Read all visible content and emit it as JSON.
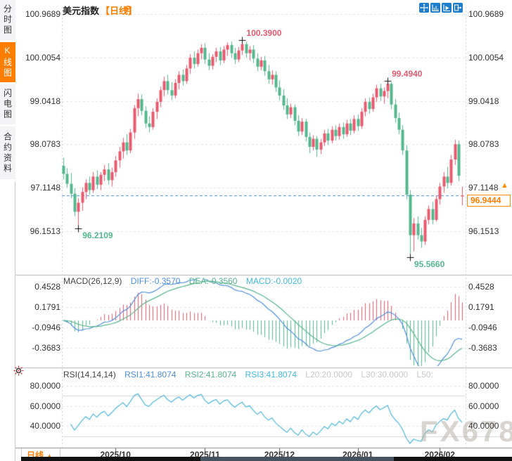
{
  "sidebar": {
    "items": [
      {
        "label": "分时图",
        "active": false
      },
      {
        "label": "K线图",
        "active": true
      },
      {
        "label": "闪电图",
        "active": false
      },
      {
        "label": "合约资料",
        "active": false
      }
    ]
  },
  "header": {
    "symbol": "美元指数",
    "period_tag": "【日线】",
    "add_icon": "⊕"
  },
  "toolbar": {
    "buttons": [
      "pan",
      "fit-y-axis",
      "scale-y-axis",
      "exit-chart"
    ]
  },
  "price_box": {
    "value": "96.9444"
  },
  "arrow_up": "▲",
  "footer": {
    "period": "日线",
    "arrow": "▲"
  },
  "watermark": "FX678",
  "colors": {
    "up": "#e85a6e",
    "down": "#54b78e",
    "accent": "#ff7d00",
    "diff_blue": "#4f8fdd",
    "dea_green": "#57b58c",
    "macd_cyan": "#3fbbdc",
    "rsi_line": "#4fb6da",
    "dashed_price_line": "#3f8fe0",
    "grid": "#e5e5e8",
    "level_gray": "#d6d6d6",
    "icon_blue": "#1f7ec9",
    "marker": "#111111"
  },
  "chart_data": {
    "type": "candlestick",
    "title": "美元指数 日线",
    "price_axis_labels": [
      "100.9689",
      "100.0054",
      "99.0418",
      "98.0783",
      "97.1148",
      "96.1513"
    ],
    "x_labels": [
      "2025/10",
      "2025/11",
      "2025/12",
      "2026/01",
      "2026/02"
    ],
    "x_label_indices": [
      14,
      38,
      58,
      79,
      101
    ],
    "current_price": 96.9444,
    "current_price_neighbor_label": "97.1148",
    "annotations": [
      {
        "index": 4,
        "value": 96.2109,
        "label": "96.2109",
        "kind": "low"
      },
      {
        "index": 48,
        "value": 100.39,
        "label": "100.3900",
        "kind": "high"
      },
      {
        "index": 87,
        "value": 99.494,
        "label": "99.4940",
        "kind": "high"
      },
      {
        "index": 93,
        "value": 95.566,
        "label": "95.5660",
        "kind": "low"
      }
    ],
    "candles_ohlc": [
      [
        97.6,
        97.78,
        97.3,
        97.42
      ],
      [
        97.42,
        97.55,
        97.12,
        97.2
      ],
      [
        97.2,
        97.44,
        96.88,
        96.98
      ],
      [
        96.98,
        97.1,
        96.48,
        96.58
      ],
      [
        96.58,
        96.88,
        96.2109,
        96.78
      ],
      [
        96.78,
        97.12,
        96.6,
        97.02
      ],
      [
        97.02,
        97.3,
        96.86,
        97.22
      ],
      [
        97.22,
        97.36,
        96.96,
        97.06
      ],
      [
        97.06,
        97.46,
        97.0,
        97.36
      ],
      [
        97.36,
        97.5,
        97.08,
        97.18
      ],
      [
        97.18,
        97.46,
        97.06,
        97.4
      ],
      [
        97.4,
        97.62,
        97.26,
        97.52
      ],
      [
        97.52,
        97.66,
        97.18,
        97.28
      ],
      [
        97.28,
        97.56,
        97.14,
        97.46
      ],
      [
        97.46,
        97.82,
        97.36,
        97.72
      ],
      [
        97.72,
        98.02,
        97.56,
        97.92
      ],
      [
        97.92,
        98.22,
        97.76,
        98.12
      ],
      [
        98.12,
        98.3,
        97.84,
        97.94
      ],
      [
        97.94,
        98.42,
        97.88,
        98.34
      ],
      [
        98.34,
        98.95,
        98.2,
        98.88
      ],
      [
        98.88,
        99.2,
        98.7,
        99.08
      ],
      [
        99.08,
        99.18,
        98.72,
        98.82
      ],
      [
        98.82,
        98.92,
        98.44,
        98.54
      ],
      [
        98.54,
        98.7,
        98.34,
        98.46
      ],
      [
        98.46,
        98.88,
        98.4,
        98.8
      ],
      [
        98.8,
        99.1,
        98.64,
        99.02
      ],
      [
        99.02,
        99.36,
        98.9,
        99.28
      ],
      [
        99.28,
        99.58,
        99.14,
        99.48
      ],
      [
        99.48,
        99.62,
        99.18,
        99.28
      ],
      [
        99.28,
        99.46,
        99.06,
        99.16
      ],
      [
        99.16,
        99.52,
        99.1,
        99.44
      ],
      [
        99.44,
        99.7,
        99.3,
        99.62
      ],
      [
        99.62,
        99.74,
        99.38,
        99.48
      ],
      [
        99.48,
        99.84,
        99.42,
        99.76
      ],
      [
        99.76,
        100.08,
        99.64,
        100.0
      ],
      [
        100.0,
        100.14,
        99.76,
        99.86
      ],
      [
        99.86,
        100.18,
        99.8,
        100.1
      ],
      [
        100.1,
        100.3,
        99.96,
        100.22
      ],
      [
        100.22,
        100.32,
        99.86,
        99.96
      ],
      [
        99.96,
        100.1,
        99.72,
        99.82
      ],
      [
        99.82,
        100.08,
        99.74,
        100.02
      ],
      [
        100.02,
        100.22,
        99.9,
        100.14
      ],
      [
        100.14,
        100.24,
        99.84,
        99.94
      ],
      [
        99.94,
        100.26,
        99.88,
        100.18
      ],
      [
        100.18,
        100.34,
        100.04,
        100.28
      ],
      [
        100.28,
        100.36,
        100.0,
        100.1
      ],
      [
        100.1,
        100.22,
        99.86,
        99.96
      ],
      [
        99.96,
        100.24,
        99.9,
        100.16
      ],
      [
        100.16,
        100.39,
        100.06,
        100.3
      ],
      [
        100.3,
        100.36,
        100.0,
        100.1
      ],
      [
        100.1,
        100.26,
        99.94,
        100.18
      ],
      [
        100.18,
        100.28,
        99.88,
        99.98
      ],
      [
        99.98,
        100.1,
        99.7,
        99.8
      ],
      [
        99.8,
        100.02,
        99.72,
        99.94
      ],
      [
        99.94,
        100.04,
        99.6,
        99.7
      ],
      [
        99.7,
        99.84,
        99.42,
        99.52
      ],
      [
        99.52,
        99.72,
        99.4,
        99.62
      ],
      [
        99.62,
        99.7,
        99.24,
        99.34
      ],
      [
        99.34,
        99.5,
        99.06,
        99.16
      ],
      [
        99.16,
        99.3,
        98.84,
        98.94
      ],
      [
        98.94,
        99.1,
        98.64,
        98.74
      ],
      [
        98.74,
        98.98,
        98.66,
        98.9
      ],
      [
        98.9,
        98.96,
        98.5,
        98.6
      ],
      [
        98.6,
        98.72,
        98.26,
        98.36
      ],
      [
        98.36,
        98.66,
        98.28,
        98.58
      ],
      [
        98.58,
        98.64,
        98.14,
        98.24
      ],
      [
        98.24,
        98.34,
        97.88,
        98.02
      ],
      [
        98.02,
        98.28,
        97.94,
        98.2
      ],
      [
        98.2,
        98.26,
        97.8,
        97.96
      ],
      [
        97.96,
        98.2,
        97.86,
        98.12
      ],
      [
        98.12,
        98.4,
        98.04,
        98.32
      ],
      [
        98.32,
        98.42,
        98.06,
        98.16
      ],
      [
        98.16,
        98.48,
        98.1,
        98.4
      ],
      [
        98.4,
        98.5,
        98.16,
        98.26
      ],
      [
        98.26,
        98.54,
        98.18,
        98.46
      ],
      [
        98.46,
        98.56,
        98.2,
        98.3
      ],
      [
        98.3,
        98.62,
        98.24,
        98.54
      ],
      [
        98.54,
        98.64,
        98.28,
        98.38
      ],
      [
        98.38,
        98.72,
        98.32,
        98.64
      ],
      [
        98.64,
        98.74,
        98.38,
        98.48
      ],
      [
        98.48,
        98.88,
        98.42,
        98.8
      ],
      [
        98.8,
        99.1,
        98.7,
        99.02
      ],
      [
        99.02,
        99.12,
        98.76,
        98.86
      ],
      [
        98.86,
        99.2,
        98.8,
        99.12
      ],
      [
        99.12,
        99.4,
        99.02,
        99.32
      ],
      [
        99.32,
        99.42,
        99.04,
        99.14
      ],
      [
        99.14,
        99.34,
        98.98,
        99.26
      ],
      [
        99.26,
        99.494,
        99.1,
        99.42
      ],
      [
        99.42,
        99.46,
        98.86,
        98.96
      ],
      [
        98.96,
        99.08,
        98.56,
        98.66
      ],
      [
        98.66,
        98.78,
        98.3,
        98.4
      ],
      [
        98.4,
        98.5,
        97.84,
        97.94
      ],
      [
        97.94,
        98.06,
        96.86,
        96.96
      ],
      [
        96.96,
        97.06,
        95.566,
        96.06
      ],
      [
        96.06,
        96.44,
        95.7,
        96.32
      ],
      [
        96.32,
        96.48,
        95.96,
        96.06
      ],
      [
        96.06,
        96.22,
        95.78,
        95.92
      ],
      [
        95.92,
        96.48,
        95.84,
        96.4
      ],
      [
        96.4,
        96.72,
        96.3,
        96.64
      ],
      [
        96.64,
        96.8,
        96.3,
        96.4
      ],
      [
        96.4,
        96.94,
        96.36,
        96.86
      ],
      [
        96.86,
        97.22,
        96.74,
        97.14
      ],
      [
        97.14,
        97.46,
        97.0,
        97.36
      ],
      [
        97.36,
        97.58,
        97.1,
        97.22
      ],
      [
        97.22,
        97.84,
        97.16,
        97.74
      ],
      [
        97.74,
        98.18,
        97.62,
        98.08
      ],
      [
        98.08,
        98.16,
        97.26,
        97.38
      ],
      [
        96.92,
        97.14,
        96.72,
        96.9444
      ]
    ],
    "indicators": {
      "macd": {
        "name": "MACD(26,12,9)",
        "diff_label": "DIFF:-0.3570",
        "dea_label": "DEA:-0.3560",
        "macd_label": "MACD:-0.0020",
        "axis_labels": [
          "0.4528",
          "0.1791",
          "-0.0946",
          "-0.3683"
        ],
        "params": [
          26,
          12,
          9
        ]
      },
      "rsi": {
        "name": "RSI(14,14,14)",
        "rsi1_label": "RSI1:41.8074",
        "rsi2_label": "RSI2:41.8074",
        "rsi3_label": "RSI3:41.8074",
        "l20_label": "L20:20.0000",
        "l30_label": "L30:30.0000",
        "l50_label": "L50:",
        "axis_labels": [
          "80.0000",
          "60.0000",
          "40.0000"
        ],
        "levels": [
          70,
          30
        ]
      }
    }
  }
}
